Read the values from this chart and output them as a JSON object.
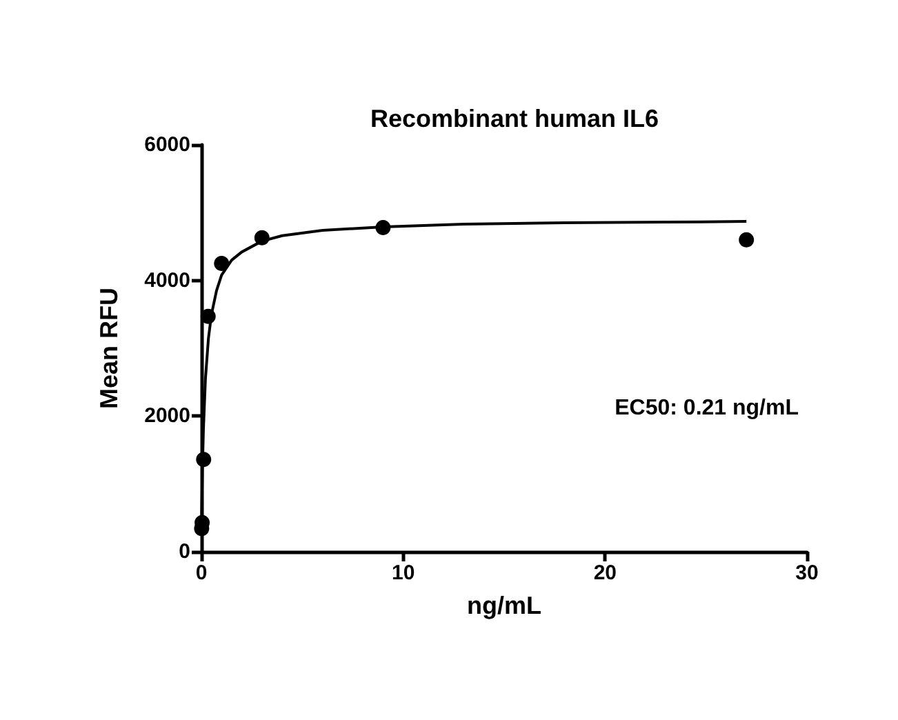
{
  "chart_data": {
    "type": "scatter",
    "title": "Recombinant human IL6",
    "xlabel": "ng/mL",
    "ylabel": "Mean RFU",
    "series": [
      {
        "color": "#000000",
        "marker": "circle",
        "x": [
          0.012,
          0.037,
          0.111,
          0.333,
          1,
          3,
          9,
          27
        ],
        "values": [
          340,
          430,
          1360,
          3470,
          4250,
          4630,
          4780,
          4600
        ]
      },
      {
        "type": "line",
        "color": "#000000",
        "marker": "none",
        "line_style": "solid",
        "x": [
          0,
          0.05,
          0.1,
          0.2,
          0.35,
          0.5,
          0.75,
          1,
          1.5,
          2,
          3,
          4,
          6,
          9,
          13,
          18,
          23,
          27
        ],
        "values": [
          300,
          1200,
          1800,
          2550,
          3150,
          3500,
          3850,
          4080,
          4300,
          4420,
          4580,
          4660,
          4740,
          4790,
          4830,
          4850,
          4860,
          4870
        ]
      }
    ],
    "xlim": [
      0,
      30
    ],
    "xticks": [
      0,
      10,
      20,
      30
    ],
    "ylim": [
      0,
      6000
    ],
    "yticks": [
      0,
      2000,
      4000,
      6000
    ],
    "grid": false,
    "annotations": [
      "EC50: 0.21 ng/mL"
    ]
  }
}
